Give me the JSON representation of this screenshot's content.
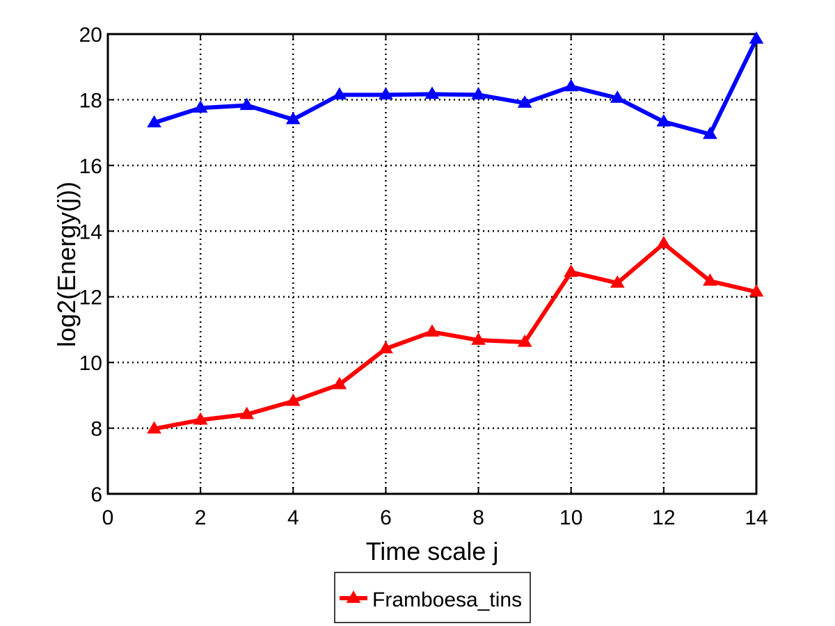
{
  "chart_data": {
    "type": "line",
    "title": "",
    "xlabel": "Time scale j",
    "ylabel": "log2(Energy(j))",
    "xlim": [
      0,
      14
    ],
    "ylim": [
      6,
      20
    ],
    "xticks": [
      0,
      2,
      4,
      6,
      8,
      10,
      12,
      14
    ],
    "yticks": [
      6,
      8,
      10,
      12,
      14,
      16,
      18,
      20
    ],
    "grid": true,
    "legend_position": "bottom-center",
    "x": [
      1,
      2,
      3,
      4,
      5,
      6,
      7,
      8,
      9,
      10,
      11,
      12,
      13,
      14
    ],
    "series": [
      {
        "color": "#0000ff",
        "marker": "triangle",
        "values": [
          17.3,
          17.75,
          17.83,
          17.4,
          18.15,
          18.15,
          18.17,
          18.15,
          17.9,
          18.4,
          18.05,
          17.33,
          16.95,
          19.85
        ]
      },
      {
        "name": "Framboesa_tins",
        "color": "#ff0000",
        "marker": "triangle",
        "values": [
          7.98,
          8.25,
          8.42,
          8.82,
          9.33,
          10.42,
          10.93,
          10.68,
          10.62,
          12.75,
          12.42,
          13.62,
          12.48,
          12.15
        ]
      }
    ]
  }
}
